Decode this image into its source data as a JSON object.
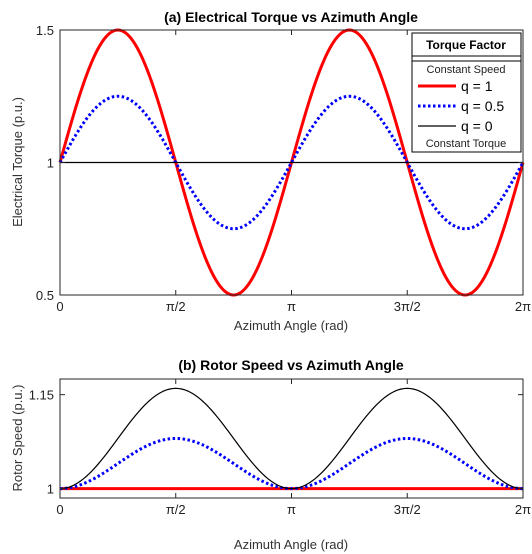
{
  "chart_data": [
    {
      "id": "a",
      "type": "line",
      "title": "(a) Electrical Torque vs Azimuth Angle",
      "xlabel": "Azimuth Angle (rad)",
      "ylabel": "Electrical Torque (p.u.)",
      "xlim": [
        0,
        6.283185
      ],
      "ylim": [
        0.5,
        1.5
      ],
      "xticks": [
        0,
        1.570796,
        3.141593,
        4.712389,
        6.283185
      ],
      "xticklabels": [
        "0",
        "π/2",
        "π",
        "3π/2",
        "2π"
      ],
      "yticks": [
        0.5,
        1,
        1.5
      ],
      "yticklabels": [
        "0.5",
        "1",
        "1.5"
      ],
      "grid": false,
      "legend": {
        "placement": "top-right",
        "title": "Torque Factor",
        "header": "Constant Speed",
        "footer": "Constant Torque",
        "entries": [
          "q = 1",
          "q = 0.5",
          "q = 0"
        ]
      },
      "series": [
        {
          "name": "q = 1",
          "q": 1,
          "color": "#ff0000",
          "style": "solid",
          "formula": "1 + 0.5 q sin(2θ)"
        },
        {
          "name": "q = 0.5",
          "q": 0.5,
          "color": "#0000ff",
          "style": "dotted",
          "formula": "1 + 0.5 q sin(2θ)"
        },
        {
          "name": "q = 0",
          "q": 0,
          "color": "#000000",
          "style": "solid",
          "formula": "1 + 0.5 q sin(2θ)"
        }
      ]
    },
    {
      "id": "b",
      "type": "line",
      "title": "(b) Rotor Speed vs Azimuth Angle",
      "xlabel": "Azimuth Angle (rad)",
      "ylabel": "Rotor Speed (p.u.)",
      "xlim": [
        0,
        6.283185
      ],
      "ylim": [
        0.985,
        1.175
      ],
      "xticks": [
        0,
        1.570796,
        3.141593,
        4.712389,
        6.283185
      ],
      "xticklabels": [
        "0",
        "π/2",
        "π",
        "3π/2",
        "2π"
      ],
      "yticks": [
        1,
        1.15
      ],
      "yticklabels": [
        "1",
        "1.15"
      ],
      "grid": false,
      "series": [
        {
          "name": "q = 1",
          "color": "#ff0000",
          "style": "solid",
          "peak": 1.0
        },
        {
          "name": "q = 0.5",
          "color": "#0000ff",
          "style": "dotted",
          "peak": 1.08
        },
        {
          "name": "q = 0",
          "color": "#000000",
          "style": "solid",
          "peak": 1.16
        }
      ]
    }
  ]
}
